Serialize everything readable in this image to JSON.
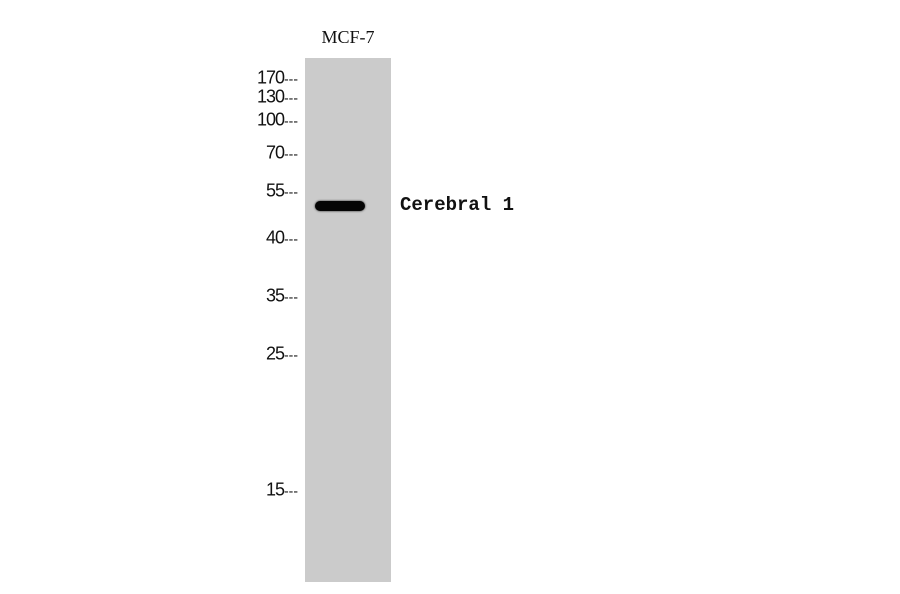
{
  "lanes": [
    {
      "label": "MCF-7",
      "background": "#cbcbcb"
    }
  ],
  "markers": [
    {
      "label": "170",
      "kda": 170
    },
    {
      "label": "130",
      "kda": 130
    },
    {
      "label": "100",
      "kda": 100
    },
    {
      "label": "70",
      "kda": 70
    },
    {
      "label": "55",
      "kda": 55
    },
    {
      "label": "40",
      "kda": 40
    },
    {
      "label": "35",
      "kda": 35
    },
    {
      "label": "25",
      "kda": 25
    },
    {
      "label": "15",
      "kda": 15
    }
  ],
  "marker_dash": "---",
  "band": {
    "label": "Cerebral 1",
    "color": "#050505"
  }
}
